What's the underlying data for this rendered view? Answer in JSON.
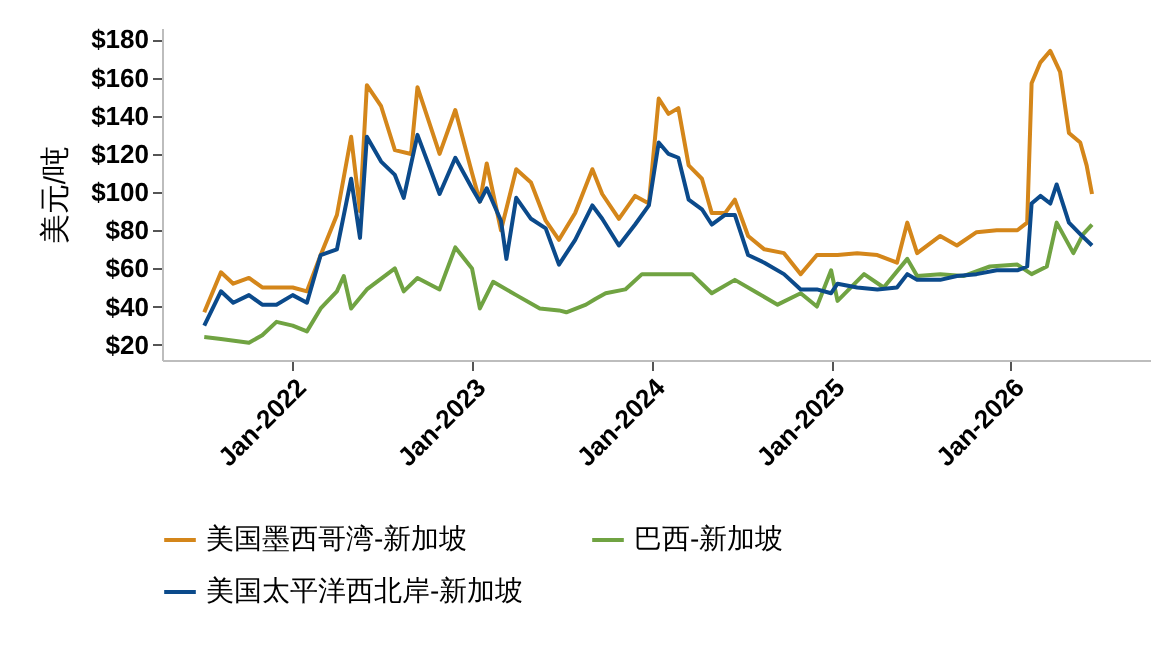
{
  "chart_data": {
    "type": "line",
    "ylabel": "美元/吨",
    "xlim": [
      "2021-04-10",
      "2026-10-12"
    ],
    "ylim": [
      12,
      186
    ],
    "yticks": [
      {
        "value": 20,
        "label": "$20"
      },
      {
        "value": 40,
        "label": "$40"
      },
      {
        "value": 60,
        "label": "$60"
      },
      {
        "value": 80,
        "label": "$80"
      },
      {
        "value": 100,
        "label": "$100"
      },
      {
        "value": 120,
        "label": "$120"
      },
      {
        "value": 140,
        "label": "$140"
      },
      {
        "value": 160,
        "label": "$160"
      },
      {
        "value": 180,
        "label": "$180"
      }
    ],
    "xticks": [
      {
        "value": "2022-01-01",
        "label": "Jan-2022"
      },
      {
        "value": "2023-01-01",
        "label": "Jan-2023"
      },
      {
        "value": "2024-01-01",
        "label": "Jan-2024"
      },
      {
        "value": "2025-01-01",
        "label": "Jan-2025"
      },
      {
        "value": "2026-01-01",
        "label": "Jan-2026"
      }
    ],
    "grid": false,
    "legend": "bottom",
    "series": [
      {
        "name": "美国墨西哥湾-新加坡",
        "color": "#d4861a",
        "x": [
          "2021-07-05",
          "2021-08-08",
          "2021-09-02",
          "2021-10-04",
          "2021-10-31",
          "2021-11-29",
          "2022-01-01",
          "2022-01-30",
          "2022-02-27",
          "2022-04-01",
          "2022-04-30",
          "2022-05-18",
          "2022-06-01",
          "2022-06-30",
          "2022-07-28",
          "2022-08-30",
          "2022-09-12",
          "2022-10-27",
          "2022-11-28",
          "2023-01-01",
          "2023-01-17",
          "2023-01-31",
          "2023-03-01",
          "2023-04-01",
          "2023-05-01",
          "2023-05-31",
          "2023-06-27",
          "2023-07-30",
          "2023-09-03",
          "2023-09-23",
          "2023-10-27",
          "2023-11-29",
          "2023-12-27",
          "2024-01-16",
          "2024-02-05",
          "2024-02-25",
          "2024-03-17",
          "2024-04-13",
          "2024-05-03",
          "2024-05-30",
          "2024-06-19",
          "2024-07-16",
          "2024-08-18",
          "2024-09-27",
          "2024-10-31",
          "2024-12-03",
          "2025-01-14",
          "2025-02-23",
          "2025-04-05",
          "2025-05-15",
          "2025-06-05",
          "2025-06-25",
          "2025-08-11",
          "2025-09-14",
          "2025-10-24",
          "2025-12-04",
          "2026-01-15",
          "2026-02-04",
          "2026-02-13",
          "2026-03-03",
          "2026-03-23",
          "2026-04-12",
          "2026-04-30",
          "2026-05-23",
          "2026-06-05",
          "2026-06-16"
        ],
        "values": [
          37,
          58,
          52,
          55,
          50,
          50,
          50,
          48,
          67,
          88,
          129,
          90,
          156,
          145,
          122,
          120,
          155,
          120,
          143,
          110,
          95,
          115,
          80,
          112,
          105,
          85,
          75,
          89,
          112,
          99,
          86,
          98,
          94,
          149,
          141,
          144,
          114,
          107,
          89,
          89,
          96,
          77,
          70,
          68,
          57,
          67,
          67,
          68,
          67,
          63,
          84,
          68,
          77,
          72,
          79,
          80,
          80,
          84,
          157,
          168,
          174,
          163,
          131,
          126,
          114,
          99
        ]
      },
      {
        "name": "巴西-新加坡",
        "color": "#70a342",
        "x": [
          "2021-07-05",
          "2021-08-08",
          "2021-10-04",
          "2021-10-31",
          "2021-11-29",
          "2022-01-01",
          "2022-01-30",
          "2022-02-27",
          "2022-04-01",
          "2022-04-15",
          "2022-04-30",
          "2022-06-01",
          "2022-07-28",
          "2022-08-15",
          "2022-09-12",
          "2022-10-27",
          "2022-11-28",
          "2023-01-01",
          "2023-01-17",
          "2023-02-13",
          "2023-04-01",
          "2023-05-19",
          "2023-06-27",
          "2023-07-12",
          "2023-08-21",
          "2023-09-09",
          "2023-09-30",
          "2023-11-09",
          "2023-12-13",
          "2024-02-25",
          "2024-03-24",
          "2024-05-03",
          "2024-06-19",
          "2024-08-05",
          "2024-09-14",
          "2024-10-31",
          "2024-12-03",
          "2025-01-01",
          "2025-01-14",
          "2025-03-09",
          "2025-04-18",
          "2025-06-05",
          "2025-06-25",
          "2025-08-11",
          "2025-09-27",
          "2025-11-20",
          "2026-01-15",
          "2026-02-13",
          "2026-03-16",
          "2026-04-05",
          "2026-05-09",
          "2026-05-29",
          "2026-06-16"
        ],
        "values": [
          24,
          23,
          21,
          25,
          32,
          30,
          27,
          39,
          48,
          56,
          39,
          49,
          60,
          48,
          55,
          49,
          71,
          60,
          39,
          53,
          46,
          39,
          38,
          37,
          41,
          44,
          47,
          49,
          57,
          57,
          57,
          47,
          54,
          47,
          41,
          47,
          40,
          59,
          43,
          57,
          50,
          65,
          56,
          57,
          56,
          61,
          62,
          57,
          61,
          84,
          68,
          78,
          83
        ]
      },
      {
        "name": "美国太平洋西北岸-新加坡",
        "color": "#0b4a8b",
        "x": [
          "2021-07-05",
          "2021-08-08",
          "2021-09-02",
          "2021-10-04",
          "2021-10-31",
          "2021-11-29",
          "2022-01-01",
          "2022-01-30",
          "2022-02-27",
          "2022-04-01",
          "2022-04-30",
          "2022-05-18",
          "2022-06-01",
          "2022-06-30",
          "2022-07-28",
          "2022-08-15",
          "2022-09-12",
          "2022-10-27",
          "2022-11-28",
          "2023-01-01",
          "2023-01-17",
          "2023-01-31",
          "2023-03-01",
          "2023-03-12",
          "2023-04-01",
          "2023-05-01",
          "2023-05-31",
          "2023-06-27",
          "2023-07-30",
          "2023-09-03",
          "2023-09-23",
          "2023-10-27",
          "2023-11-29",
          "2023-12-27",
          "2024-01-16",
          "2024-02-05",
          "2024-02-25",
          "2024-03-17",
          "2024-04-13",
          "2024-05-03",
          "2024-05-30",
          "2024-06-19",
          "2024-07-16",
          "2024-08-18",
          "2024-09-27",
          "2024-10-31",
          "2024-12-03",
          "2025-01-01",
          "2025-01-14",
          "2025-02-23",
          "2025-04-05",
          "2025-05-15",
          "2025-06-05",
          "2025-06-25",
          "2025-08-11",
          "2025-09-14",
          "2025-10-24",
          "2025-12-04",
          "2026-01-15",
          "2026-02-04",
          "2026-02-13",
          "2026-03-03",
          "2026-03-23",
          "2026-04-05",
          "2026-04-30",
          "2026-05-23",
          "2026-06-16"
        ],
        "values": [
          30,
          48,
          42,
          46,
          41,
          41,
          46,
          42,
          67,
          70,
          107,
          76,
          129,
          116,
          109,
          97,
          130,
          99,
          118,
          102,
          95,
          102,
          85,
          65,
          97,
          86,
          81,
          62,
          75,
          93,
          86,
          72,
          83,
          93,
          126,
          120,
          118,
          96,
          91,
          83,
          88,
          88,
          67,
          63,
          57,
          49,
          49,
          47,
          52,
          50,
          49,
          50,
          57,
          54,
          54,
          56,
          57,
          59,
          59,
          61,
          94,
          98,
          94,
          104,
          84,
          78,
          72
        ]
      }
    ]
  }
}
